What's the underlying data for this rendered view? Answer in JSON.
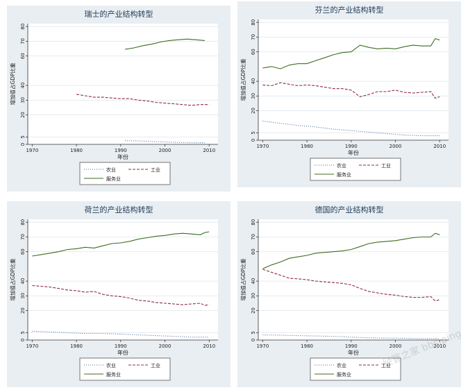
{
  "chart_data": [
    {
      "type": "line",
      "title": "瑞士的产业结构转型",
      "xlabel": "年份",
      "ylabel": "增加值占GDP比重",
      "xlim": [
        1969,
        2012
      ],
      "ylim": [
        0,
        82
      ],
      "xticks": [
        1970,
        1980,
        1990,
        2000,
        2010
      ],
      "yticks": [
        0,
        5,
        20,
        30,
        40,
        60,
        70,
        80
      ],
      "grid": true,
      "legend_position": "bottom",
      "series": [
        {
          "name": "农业",
          "style": "dotted",
          "color": "#4a6a9a",
          "x": [
            1991,
            1993,
            1995,
            1997,
            1999,
            2001,
            2003,
            2005,
            2007,
            2009
          ],
          "y": [
            2.5,
            2.4,
            2.2,
            2.0,
            1.7,
            1.5,
            1.3,
            1.2,
            1.1,
            1.1
          ]
        },
        {
          "name": "工业",
          "style": "dashed",
          "color": "#8b2a4a",
          "x": [
            1980,
            1982,
            1984,
            1986,
            1988,
            1990,
            1992,
            1994,
            1996,
            1998,
            2000,
            2002,
            2004,
            2006,
            2008,
            2010
          ],
          "y": [
            34.0,
            33.0,
            32.0,
            32.0,
            31.5,
            31.0,
            31.0,
            30.0,
            29.5,
            28.5,
            28.0,
            27.5,
            27.0,
            26.5,
            27.0,
            27.0
          ]
        },
        {
          "name": "服务业",
          "style": "solid",
          "color": "#3d6b20",
          "x": [
            1991,
            1993,
            1995,
            1997,
            1999,
            2001,
            2003,
            2005,
            2007,
            2009
          ],
          "y": [
            64.5,
            65.5,
            67.0,
            68.0,
            69.5,
            70.5,
            71.0,
            71.5,
            71.0,
            70.5
          ]
        }
      ]
    },
    {
      "type": "line",
      "title": "芬兰的产业结构转型",
      "xlabel": "年份",
      "ylabel": "增加值占GDP比重",
      "xlim": [
        1969,
        2012
      ],
      "ylim": [
        0,
        82
      ],
      "xticks": [
        1970,
        1980,
        1990,
        2000,
        2010
      ],
      "yticks": [
        0,
        5,
        20,
        30,
        40,
        60,
        70,
        80
      ],
      "grid": true,
      "legend_position": "bottom",
      "series": [
        {
          "name": "农业",
          "style": "dotted",
          "color": "#4a6a9a",
          "x": [
            1970,
            1974,
            1978,
            1982,
            1986,
            1990,
            1994,
            1998,
            2002,
            2006,
            2010
          ],
          "y": [
            13.0,
            11.5,
            10.0,
            9.0,
            7.5,
            6.5,
            5.5,
            4.5,
            3.5,
            3.0,
            3.0
          ]
        },
        {
          "name": "工业",
          "style": "dashed",
          "color": "#8b2a4a",
          "x": [
            1970,
            1972,
            1974,
            1976,
            1978,
            1980,
            1982,
            1984,
            1986,
            1988,
            1990,
            1992,
            1994,
            1996,
            1998,
            2000,
            2002,
            2004,
            2006,
            2008,
            2009,
            2010
          ],
          "y": [
            37.5,
            37.0,
            39.0,
            38.0,
            37.0,
            37.5,
            37.0,
            36.0,
            35.0,
            35.0,
            34.0,
            29.5,
            31.0,
            33.0,
            33.0,
            34.0,
            32.5,
            32.0,
            32.5,
            33.0,
            28.5,
            29.5
          ]
        },
        {
          "name": "服务业",
          "style": "solid",
          "color": "#3d6b20",
          "x": [
            1970,
            1972,
            1974,
            1976,
            1978,
            1980,
            1982,
            1984,
            1986,
            1988,
            1990,
            1992,
            1994,
            1996,
            1998,
            2000,
            2002,
            2004,
            2006,
            2008,
            2009,
            2010
          ],
          "y": [
            49.0,
            50.0,
            48.5,
            51.0,
            52.0,
            52.0,
            54.0,
            56.0,
            58.0,
            59.5,
            60.0,
            64.5,
            63.0,
            62.0,
            62.5,
            62.0,
            63.5,
            64.5,
            64.0,
            64.0,
            69.0,
            68.0
          ]
        }
      ]
    },
    {
      "type": "line",
      "title": "荷兰的产业结构转型",
      "xlabel": "年份",
      "ylabel": "增加值占GDP比重",
      "xlim": [
        1969,
        2012
      ],
      "ylim": [
        0,
        82
      ],
      "xticks": [
        1970,
        1980,
        1990,
        2000,
        2010
      ],
      "yticks": [
        0,
        5,
        20,
        30,
        40,
        60,
        70,
        80
      ],
      "grid": true,
      "legend_position": "bottom",
      "series": [
        {
          "name": "农业",
          "style": "dotted",
          "color": "#4a6a9a",
          "x": [
            1970,
            1974,
            1978,
            1982,
            1986,
            1990,
            1994,
            1998,
            2002,
            2006,
            2010
          ],
          "y": [
            6.0,
            5.5,
            5.0,
            4.5,
            4.5,
            4.0,
            3.5,
            3.0,
            2.5,
            2.0,
            2.0
          ]
        },
        {
          "name": "工业",
          "style": "dashed",
          "color": "#8b2a4a",
          "x": [
            1970,
            1972,
            1974,
            1976,
            1978,
            1980,
            1982,
            1984,
            1986,
            1988,
            1990,
            1992,
            1994,
            1996,
            1998,
            2000,
            2002,
            2004,
            2006,
            2008,
            2009,
            2010
          ],
          "y": [
            37.0,
            36.5,
            36.0,
            35.0,
            34.0,
            33.5,
            32.5,
            33.0,
            31.0,
            30.0,
            29.5,
            28.5,
            27.0,
            26.5,
            25.5,
            25.0,
            24.5,
            24.0,
            24.5,
            25.0,
            23.5,
            24.0
          ]
        },
        {
          "name": "服务业",
          "style": "solid",
          "color": "#3d6b20",
          "x": [
            1970,
            1972,
            1974,
            1976,
            1978,
            1980,
            1982,
            1984,
            1986,
            1988,
            1990,
            1992,
            1994,
            1996,
            1998,
            2000,
            2002,
            2004,
            2006,
            2008,
            2009,
            2010
          ],
          "y": [
            57.0,
            58.0,
            59.0,
            60.0,
            61.5,
            62.0,
            63.0,
            62.5,
            64.0,
            65.5,
            66.0,
            67.0,
            68.5,
            69.5,
            70.5,
            71.0,
            72.0,
            72.5,
            72.0,
            71.5,
            73.0,
            73.5
          ]
        }
      ]
    },
    {
      "type": "line",
      "title": "德国的产业结构转型",
      "xlabel": "年份",
      "ylabel": "增加值占GDP比重",
      "xlim": [
        1969,
        2012
      ],
      "ylim": [
        0,
        82
      ],
      "xticks": [
        1970,
        1980,
        1990,
        2000,
        2010
      ],
      "yticks": [
        0,
        5,
        20,
        30,
        40,
        60,
        70,
        80
      ],
      "grid": true,
      "legend_position": "bottom",
      "series": [
        {
          "name": "农业",
          "style": "dotted",
          "color": "#4a6a9a",
          "x": [
            1970,
            1974,
            1978,
            1982,
            1986,
            1990,
            1994,
            1998,
            2002,
            2006,
            2010
          ],
          "y": [
            3.5,
            3.3,
            3.0,
            2.8,
            2.5,
            2.0,
            1.5,
            1.3,
            1.2,
            1.0,
            1.0
          ]
        },
        {
          "name": "工业",
          "style": "dashed",
          "color": "#8b2a4a",
          "x": [
            1970,
            1972,
            1974,
            1976,
            1978,
            1980,
            1982,
            1984,
            1986,
            1988,
            1990,
            1992,
            1994,
            1996,
            1998,
            2000,
            2002,
            2004,
            2006,
            2008,
            2009,
            2010
          ],
          "y": [
            48.0,
            46.0,
            44.0,
            42.0,
            41.5,
            41.0,
            40.0,
            39.5,
            39.0,
            38.5,
            37.5,
            35.0,
            33.0,
            32.0,
            31.0,
            30.5,
            29.5,
            29.0,
            29.0,
            29.5,
            26.5,
            27.5
          ]
        },
        {
          "name": "服务业",
          "style": "solid",
          "color": "#3d6b20",
          "x": [
            1970,
            1972,
            1974,
            1976,
            1978,
            1980,
            1982,
            1984,
            1986,
            1988,
            1990,
            1992,
            1994,
            1996,
            1998,
            2000,
            2002,
            2004,
            2006,
            2008,
            2009,
            2010
          ],
          "y": [
            48.5,
            51.0,
            53.0,
            55.5,
            56.5,
            57.5,
            59.0,
            59.5,
            60.0,
            60.5,
            61.5,
            63.5,
            65.5,
            66.5,
            67.0,
            67.5,
            68.5,
            69.5,
            70.0,
            70.0,
            72.5,
            71.5
          ]
        }
      ]
    }
  ],
  "watermark": "经管之家 bbs.pinggu.org"
}
